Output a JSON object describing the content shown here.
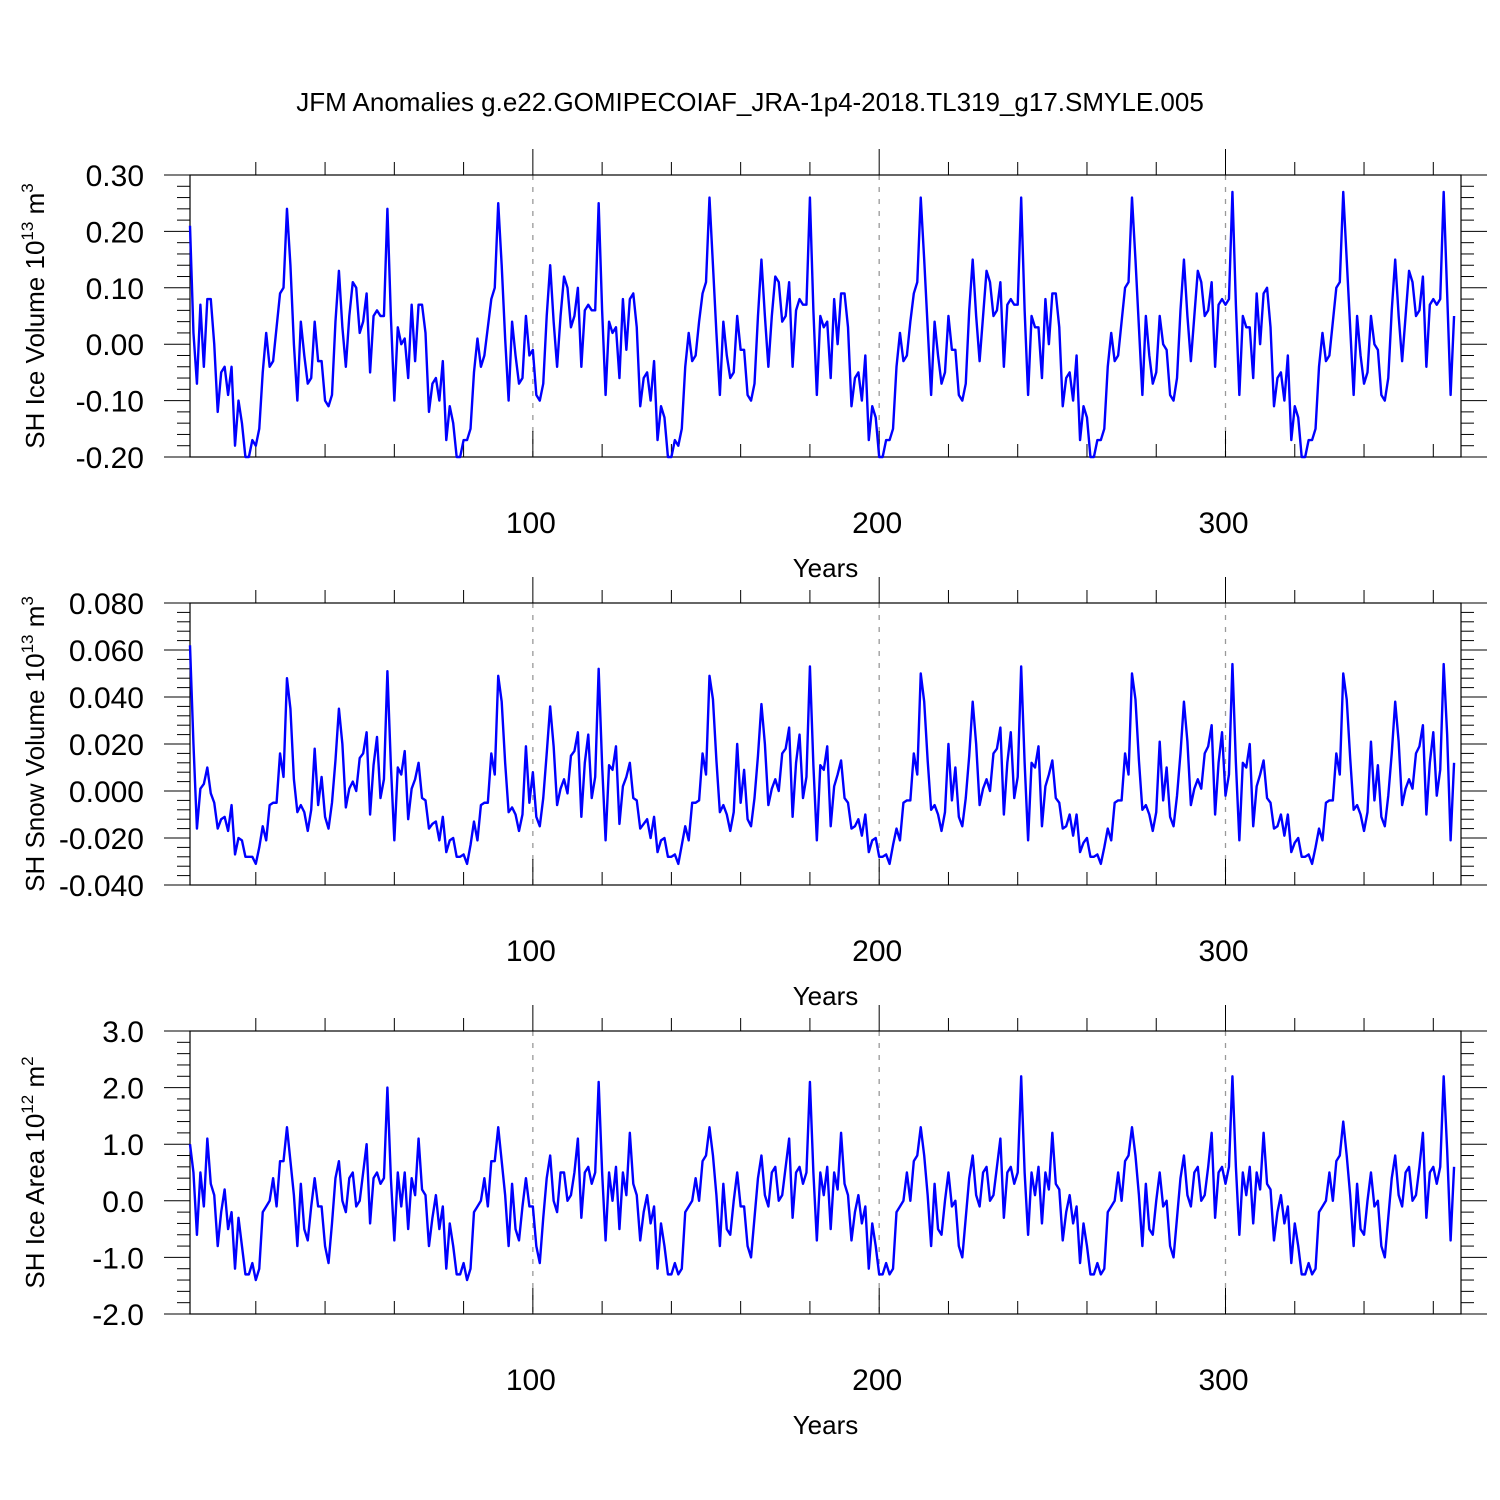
{
  "title": "JFM Anomalies g.e22.GOMIPECOIAF_JRA-1p4-2018.TL319_g17.SMYLE.005",
  "line_color": "#0000ff",
  "chart_data": [
    {
      "type": "line",
      "ylabel": "SH Ice Volume 10",
      "ylabel_exp": "13",
      "ylabel_unit": " m",
      "ylabel_unit_exp": "3",
      "xlabel": "Years",
      "xlim": [
        1,
        368
      ],
      "ylim": [
        -0.2,
        0.3
      ],
      "ytick_values": [
        -0.2,
        -0.1,
        0.0,
        0.1,
        0.2,
        0.3
      ],
      "ytick_labels": [
        "-0.20",
        "-0.10",
        "0.00",
        "0.10",
        "0.20",
        "0.30"
      ],
      "xtick_values": [
        100,
        200,
        300
      ],
      "xtick_labels": [
        "100",
        "200",
        "300"
      ],
      "grid_x": [
        100,
        200,
        300
      ],
      "x_start": 1,
      "values": [
        0.21,
        0.02,
        -0.07,
        0.07,
        -0.04,
        0.08,
        0.08,
        0.0,
        -0.12,
        -0.05,
        -0.04,
        -0.09,
        -0.04,
        -0.18,
        -0.1,
        -0.14,
        -0.2,
        -0.2,
        -0.17,
        -0.18,
        -0.15,
        -0.05,
        0.02,
        -0.04,
        -0.03,
        0.03,
        0.09,
        0.1,
        0.24,
        0.14,
        0.0,
        -0.1,
        0.04,
        -0.02,
        -0.07,
        -0.06,
        0.04,
        -0.03,
        -0.03,
        -0.1,
        -0.11,
        -0.09,
        0.04,
        0.13,
        0.03,
        -0.04,
        0.05,
        0.11,
        0.1,
        0.02,
        0.04,
        0.09,
        -0.05,
        0.05,
        0.06,
        0.05,
        0.05,
        0.24,
        0.05,
        -0.1,
        0.03,
        0.0,
        0.01,
        -0.06,
        0.07,
        -0.03,
        0.07,
        0.07,
        0.02,
        -0.12,
        -0.07,
        -0.06,
        -0.1,
        -0.03,
        -0.17,
        -0.11,
        -0.14,
        -0.2,
        -0.2,
        -0.17,
        -0.17,
        -0.15,
        -0.05,
        0.01,
        -0.04,
        -0.02,
        0.03,
        0.08,
        0.1,
        0.25,
        0.14,
        0.01,
        -0.1,
        0.04,
        -0.02,
        -0.07,
        -0.06,
        0.05,
        -0.02,
        -0.01,
        -0.09,
        -0.1,
        -0.07,
        0.05,
        0.14,
        0.04,
        -0.04,
        0.05,
        0.12,
        0.1,
        0.03,
        0.05,
        0.1,
        -0.04,
        0.06,
        0.07,
        0.06,
        0.06,
        0.25,
        0.06,
        -0.09,
        0.04,
        0.02,
        0.03,
        -0.06,
        0.08,
        -0.01,
        0.08,
        0.09,
        0.03,
        -0.11,
        -0.06,
        -0.05,
        -0.1,
        -0.03,
        -0.17,
        -0.11,
        -0.13,
        -0.2,
        -0.2,
        -0.17,
        -0.18,
        -0.15,
        -0.04,
        0.02,
        -0.03,
        -0.02,
        0.04,
        0.09,
        0.11,
        0.26,
        0.14,
        0.02,
        -0.09,
        0.04,
        -0.02,
        -0.06,
        -0.05,
        0.05,
        -0.01,
        -0.01,
        -0.09,
        -0.1,
        -0.07,
        0.05,
        0.15,
        0.05,
        -0.04,
        0.05,
        0.12,
        0.11,
        0.04,
        0.05,
        0.11,
        -0.04,
        0.06,
        0.08,
        0.07,
        0.07,
        0.26,
        0.06,
        -0.09,
        0.05,
        0.03,
        0.04,
        -0.06,
        0.08,
        0.0,
        0.09,
        0.09,
        0.03,
        -0.11,
        -0.06,
        -0.05,
        -0.1,
        -0.02,
        -0.17,
        -0.11,
        -0.13,
        -0.2,
        -0.2,
        -0.17,
        -0.17,
        -0.15,
        -0.04,
        0.02,
        -0.03,
        -0.02,
        0.04,
        0.09,
        0.11,
        0.26,
        0.15,
        0.03,
        -0.09,
        0.04,
        -0.02,
        -0.07,
        -0.05,
        0.05,
        -0.01,
        -0.01,
        -0.09,
        -0.1,
        -0.07,
        0.06,
        0.15,
        0.05,
        -0.03,
        0.05,
        0.13,
        0.11,
        0.05,
        0.06,
        0.11,
        -0.04,
        0.07,
        0.08,
        0.07,
        0.07,
        0.26,
        0.06,
        -0.09,
        0.05,
        0.03,
        0.03,
        -0.06,
        0.08,
        0.0,
        0.09,
        0.09,
        0.03,
        -0.11,
        -0.06,
        -0.05,
        -0.1,
        -0.02,
        -0.17,
        -0.11,
        -0.13,
        -0.2,
        -0.2,
        -0.17,
        -0.17,
        -0.15,
        -0.04,
        0.02,
        -0.03,
        -0.02,
        0.04,
        0.1,
        0.11,
        0.26,
        0.15,
        0.03,
        -0.09,
        0.05,
        -0.02,
        -0.07,
        -0.05,
        0.05,
        0.0,
        -0.01,
        -0.09,
        -0.1,
        -0.06,
        0.06,
        0.15,
        0.05,
        -0.03,
        0.05,
        0.13,
        0.11,
        0.05,
        0.06,
        0.11,
        -0.04,
        0.07,
        0.08,
        0.07,
        0.08,
        0.27,
        0.07,
        -0.09,
        0.05,
        0.03,
        0.03,
        -0.06,
        0.09,
        0.0,
        0.09,
        0.1,
        0.03,
        -0.11,
        -0.06,
        -0.05,
        -0.1,
        -0.02,
        -0.17,
        -0.11,
        -0.13,
        -0.2,
        -0.2,
        -0.17,
        -0.17,
        -0.15,
        -0.04,
        0.02,
        -0.03,
        -0.02,
        0.04,
        0.1,
        0.11,
        0.27,
        0.15,
        0.03,
        -0.09,
        0.05,
        -0.02,
        -0.07,
        -0.05,
        0.05,
        0.0,
        -0.01,
        -0.09,
        -0.1,
        -0.06,
        0.06,
        0.15,
        0.05,
        -0.03,
        0.05,
        0.13,
        0.11,
        0.05,
        0.06,
        0.12,
        -0.04,
        0.07,
        0.08,
        0.07,
        0.08,
        0.27,
        0.09,
        -0.09,
        0.05
      ]
    },
    {
      "type": "line",
      "ylabel": "SH Snow Volume 10",
      "ylabel_exp": "13",
      "ylabel_unit": " m",
      "ylabel_unit_exp": "3",
      "xlabel": "Years",
      "xlim": [
        1,
        368
      ],
      "ylim": [
        -0.04,
        0.08
      ],
      "ytick_values": [
        -0.04,
        -0.02,
        0.0,
        0.02,
        0.04,
        0.06,
        0.08
      ],
      "ytick_labels": [
        "-0.040",
        "-0.020",
        "0.000",
        "0.020",
        "0.040",
        "0.060",
        "0.080"
      ],
      "xtick_values": [
        100,
        200,
        300
      ],
      "xtick_labels": [
        "100",
        "200",
        "300"
      ],
      "grid_x": [
        100,
        200,
        300
      ],
      "x_start": 1,
      "values": [
        0.062,
        0.02,
        -0.016,
        0.001,
        0.003,
        0.01,
        -0.001,
        -0.005,
        -0.016,
        -0.012,
        -0.011,
        -0.017,
        -0.006,
        -0.027,
        -0.02,
        -0.021,
        -0.028,
        -0.028,
        -0.028,
        -0.031,
        -0.024,
        -0.015,
        -0.021,
        -0.006,
        -0.005,
        -0.005,
        0.016,
        0.006,
        0.048,
        0.035,
        0.005,
        -0.009,
        -0.006,
        -0.009,
        -0.017,
        -0.008,
        0.018,
        -0.006,
        0.006,
        -0.011,
        -0.016,
        -0.005,
        0.013,
        0.035,
        0.02,
        -0.007,
        0.001,
        0.004,
        0.0,
        0.014,
        0.016,
        0.025,
        -0.01,
        0.011,
        0.023,
        -0.003,
        0.005,
        0.051,
        0.011,
        -0.021,
        0.01,
        0.007,
        0.017,
        -0.012,
        0.001,
        0.005,
        0.012,
        -0.003,
        -0.004,
        -0.016,
        -0.014,
        -0.013,
        -0.021,
        -0.011,
        -0.026,
        -0.021,
        -0.02,
        -0.028,
        -0.028,
        -0.027,
        -0.031,
        -0.023,
        -0.013,
        -0.021,
        -0.006,
        -0.005,
        -0.005,
        0.016,
        0.007,
        0.049,
        0.038,
        0.012,
        -0.009,
        -0.007,
        -0.01,
        -0.017,
        -0.01,
        0.019,
        -0.005,
        0.008,
        -0.011,
        -0.015,
        -0.003,
        0.016,
        0.036,
        0.019,
        -0.006,
        0.001,
        0.005,
        -0.001,
        0.015,
        0.017,
        0.025,
        -0.011,
        0.012,
        0.024,
        -0.003,
        0.006,
        0.052,
        0.011,
        -0.021,
        0.011,
        0.009,
        0.019,
        -0.014,
        0.002,
        0.006,
        0.012,
        -0.003,
        -0.004,
        -0.016,
        -0.014,
        -0.012,
        -0.02,
        -0.011,
        -0.026,
        -0.021,
        -0.02,
        -0.028,
        -0.028,
        -0.027,
        -0.031,
        -0.023,
        -0.015,
        -0.021,
        -0.005,
        -0.005,
        -0.004,
        0.016,
        0.007,
        0.049,
        0.039,
        0.013,
        -0.009,
        -0.006,
        -0.01,
        -0.017,
        -0.009,
        0.02,
        -0.005,
        0.009,
        -0.012,
        -0.015,
        -0.003,
        0.015,
        0.037,
        0.02,
        -0.006,
        0.001,
        0.005,
        0.0,
        0.016,
        0.018,
        0.027,
        -0.011,
        0.012,
        0.024,
        -0.003,
        0.006,
        0.053,
        0.011,
        -0.021,
        0.011,
        0.009,
        0.019,
        -0.015,
        0.002,
        0.007,
        0.013,
        -0.003,
        -0.005,
        -0.016,
        -0.015,
        -0.012,
        -0.019,
        -0.01,
        -0.026,
        -0.021,
        -0.02,
        -0.028,
        -0.028,
        -0.027,
        -0.031,
        -0.023,
        -0.016,
        -0.021,
        -0.005,
        -0.004,
        -0.004,
        0.016,
        0.007,
        0.05,
        0.038,
        0.013,
        -0.008,
        -0.006,
        -0.01,
        -0.017,
        -0.009,
        0.02,
        -0.004,
        0.01,
        -0.011,
        -0.015,
        -0.003,
        0.015,
        0.038,
        0.02,
        -0.006,
        0.001,
        0.005,
        0.0,
        0.016,
        0.018,
        0.027,
        -0.01,
        0.012,
        0.025,
        -0.003,
        0.006,
        0.053,
        0.012,
        -0.021,
        0.012,
        0.01,
        0.019,
        -0.015,
        0.002,
        0.007,
        0.013,
        -0.003,
        -0.005,
        -0.016,
        -0.015,
        -0.01,
        -0.019,
        -0.01,
        -0.026,
        -0.022,
        -0.02,
        -0.028,
        -0.028,
        -0.027,
        -0.031,
        -0.024,
        -0.016,
        -0.021,
        -0.005,
        -0.004,
        -0.004,
        0.016,
        0.007,
        0.05,
        0.039,
        0.013,
        -0.008,
        -0.006,
        -0.01,
        -0.017,
        -0.009,
        0.021,
        -0.004,
        0.01,
        -0.011,
        -0.015,
        -0.002,
        0.016,
        0.038,
        0.021,
        -0.006,
        0.001,
        0.005,
        0.001,
        0.016,
        0.019,
        0.028,
        -0.01,
        0.012,
        0.025,
        -0.002,
        0.007,
        0.054,
        0.012,
        -0.021,
        0.012,
        0.01,
        0.02,
        -0.015,
        0.002,
        0.007,
        0.013,
        -0.003,
        -0.005,
        -0.016,
        -0.015,
        -0.01,
        -0.019,
        -0.01,
        -0.026,
        -0.022,
        -0.02,
        -0.028,
        -0.028,
        -0.027,
        -0.031,
        -0.024,
        -0.016,
        -0.021,
        -0.005,
        -0.004,
        -0.004,
        0.016,
        0.007,
        0.05,
        0.039,
        0.014,
        -0.008,
        -0.006,
        -0.01,
        -0.017,
        -0.009,
        0.021,
        -0.004,
        0.011,
        -0.011,
        -0.015,
        -0.002,
        0.016,
        0.038,
        0.021,
        -0.006,
        0.001,
        0.005,
        0.001,
        0.016,
        0.019,
        0.028,
        -0.01,
        0.012,
        0.025,
        -0.002,
        0.009,
        0.054,
        0.024,
        -0.021,
        0.012
      ]
    },
    {
      "type": "line",
      "ylabel": "SH Ice Area 10",
      "ylabel_exp": "12",
      "ylabel_unit": " m",
      "ylabel_unit_exp": "2",
      "xlabel": "Years",
      "xlim": [
        1,
        368
      ],
      "ylim": [
        -2.0,
        3.0
      ],
      "ytick_values": [
        -2.0,
        -1.0,
        0.0,
        1.0,
        2.0,
        3.0
      ],
      "ytick_labels": [
        "-2.0",
        "-1.0",
        "0.0",
        "1.0",
        "2.0",
        "3.0"
      ],
      "xtick_values": [
        100,
        200,
        300
      ],
      "xtick_labels": [
        "100",
        "200",
        "300"
      ],
      "grid_x": [
        100,
        200,
        300
      ],
      "x_start": 1,
      "values": [
        1.0,
        0.5,
        -0.6,
        0.5,
        -0.1,
        1.1,
        0.3,
        0.1,
        -0.8,
        -0.2,
        0.2,
        -0.5,
        -0.2,
        -1.2,
        -0.3,
        -0.8,
        -1.3,
        -1.3,
        -1.1,
        -1.4,
        -1.2,
        -0.2,
        -0.1,
        0.0,
        0.4,
        -0.1,
        0.7,
        0.7,
        1.3,
        0.7,
        0.1,
        -0.8,
        0.3,
        -0.5,
        -0.7,
        -0.1,
        0.4,
        -0.1,
        -0.1,
        -0.8,
        -1.1,
        -0.4,
        0.4,
        0.7,
        0.0,
        -0.2,
        0.4,
        0.5,
        -0.1,
        0.0,
        0.5,
        1.0,
        -0.4,
        0.4,
        0.5,
        0.3,
        0.4,
        2.0,
        0.4,
        -0.7,
        0.5,
        -0.1,
        0.5,
        -0.5,
        0.4,
        0.1,
        1.1,
        0.2,
        0.1,
        -0.8,
        -0.3,
        0.1,
        -0.5,
        -0.1,
        -1.2,
        -0.4,
        -0.8,
        -1.3,
        -1.3,
        -1.1,
        -1.4,
        -1.2,
        -0.2,
        -0.1,
        0.0,
        0.4,
        -0.1,
        0.7,
        0.7,
        1.3,
        0.7,
        0.1,
        -0.8,
        0.3,
        -0.5,
        -0.7,
        -0.1,
        0.4,
        -0.1,
        -0.1,
        -0.8,
        -1.1,
        -0.3,
        0.4,
        0.8,
        0.0,
        -0.2,
        0.5,
        0.5,
        0.0,
        0.1,
        0.5,
        1.1,
        -0.3,
        0.5,
        0.6,
        0.3,
        0.5,
        2.1,
        0.5,
        -0.7,
        0.5,
        0.0,
        0.6,
        -0.5,
        0.5,
        0.1,
        1.2,
        0.3,
        0.1,
        -0.7,
        -0.2,
        0.1,
        -0.4,
        -0.1,
        -1.2,
        -0.4,
        -0.8,
        -1.3,
        -1.3,
        -1.1,
        -1.3,
        -1.2,
        -0.2,
        -0.1,
        0.0,
        0.4,
        0.0,
        0.7,
        0.8,
        1.3,
        0.8,
        0.1,
        -0.8,
        0.3,
        -0.5,
        -0.6,
        0.0,
        0.5,
        -0.1,
        -0.1,
        -0.8,
        -1.0,
        -0.3,
        0.4,
        0.8,
        0.1,
        -0.1,
        0.5,
        0.6,
        0.0,
        0.1,
        0.6,
        1.1,
        -0.3,
        0.5,
        0.6,
        0.3,
        0.5,
        2.1,
        0.5,
        -0.7,
        0.5,
        0.1,
        0.6,
        -0.5,
        0.5,
        0.2,
        1.2,
        0.3,
        0.1,
        -0.7,
        -0.2,
        0.1,
        -0.4,
        -0.1,
        -1.2,
        -0.4,
        -0.8,
        -1.3,
        -1.3,
        -1.1,
        -1.3,
        -1.2,
        -0.2,
        -0.1,
        0.0,
        0.5,
        0.0,
        0.7,
        0.8,
        1.3,
        0.8,
        0.1,
        -0.8,
        0.3,
        -0.5,
        -0.6,
        0.0,
        0.5,
        -0.1,
        0.0,
        -0.8,
        -1.0,
        -0.3,
        0.4,
        0.8,
        0.1,
        -0.1,
        0.5,
        0.6,
        0.0,
        0.1,
        0.6,
        1.1,
        -0.3,
        0.5,
        0.6,
        0.3,
        0.5,
        2.2,
        0.5,
        -0.6,
        0.5,
        0.1,
        0.6,
        -0.4,
        0.5,
        0.2,
        1.2,
        0.3,
        0.2,
        -0.7,
        -0.2,
        0.1,
        -0.4,
        -0.1,
        -1.1,
        -0.4,
        -0.8,
        -1.3,
        -1.3,
        -1.1,
        -1.3,
        -1.2,
        -0.2,
        -0.1,
        0.0,
        0.5,
        0.0,
        0.7,
        0.8,
        1.3,
        0.8,
        0.1,
        -0.8,
        0.3,
        -0.5,
        -0.6,
        0.0,
        0.5,
        -0.1,
        0.0,
        -0.8,
        -1.0,
        -0.3,
        0.4,
        0.8,
        0.1,
        -0.1,
        0.5,
        0.6,
        0.0,
        0.1,
        0.6,
        1.2,
        -0.3,
        0.5,
        0.6,
        0.3,
        0.6,
        2.2,
        0.6,
        -0.6,
        0.5,
        0.1,
        0.6,
        -0.4,
        0.5,
        0.2,
        1.2,
        0.3,
        0.2,
        -0.7,
        -0.2,
        0.1,
        -0.4,
        -0.1,
        -1.1,
        -0.4,
        -0.8,
        -1.3,
        -1.3,
        -1.1,
        -1.3,
        -1.2,
        -0.2,
        -0.1,
        0.0,
        0.5,
        0.0,
        0.7,
        0.8,
        1.4,
        0.8,
        0.1,
        -0.8,
        0.3,
        -0.5,
        -0.6,
        0.0,
        0.5,
        -0.1,
        0.0,
        -0.8,
        -1.0,
        -0.3,
        0.4,
        0.8,
        0.1,
        -0.1,
        0.5,
        0.6,
        0.0,
        0.1,
        0.6,
        1.2,
        -0.3,
        0.5,
        0.6,
        0.3,
        0.6,
        2.2,
        0.9,
        -0.7,
        0.6
      ]
    }
  ]
}
